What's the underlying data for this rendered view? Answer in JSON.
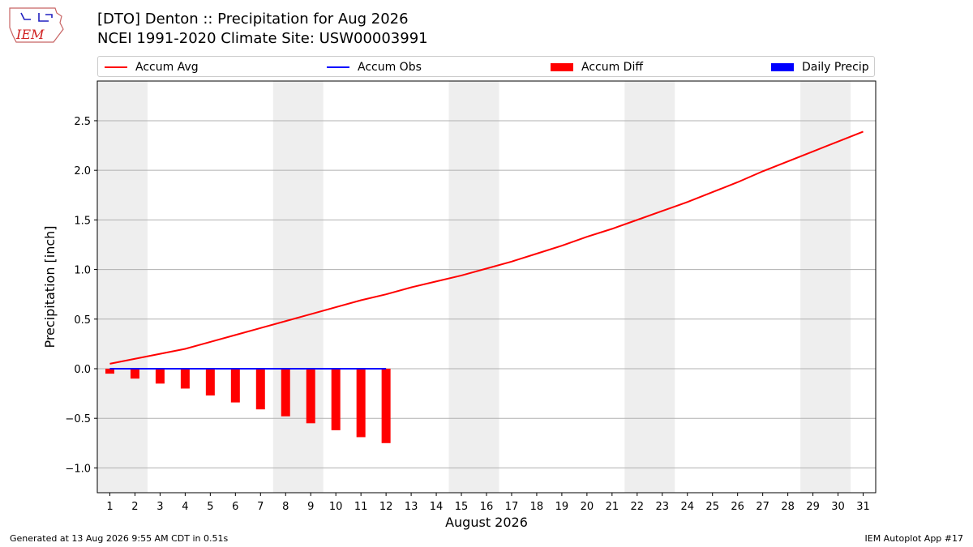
{
  "header": {
    "logo_text": "IEM",
    "title": "[DTO] Denton :: Precipitation for Aug 2026",
    "subtitle": "NCEI 1991-2020 Climate Site: USW00003991"
  },
  "legend": [
    {
      "label": "Accum Avg",
      "kind": "line",
      "color": "#ff0000"
    },
    {
      "label": "Accum Obs",
      "kind": "line",
      "color": "#0000ff"
    },
    {
      "label": "Accum Diff",
      "kind": "box",
      "color": "#ff0000"
    },
    {
      "label": "Daily Precip",
      "kind": "box",
      "color": "#0000ff"
    }
  ],
  "footer": {
    "left": "Generated at 13 Aug 2026 9:55 AM CDT in 0.51s",
    "right": "IEM Autoplot App #17"
  },
  "chart_data": {
    "type": "bar",
    "xlabel": "August 2026",
    "ylabel": "Precipitation [inch]",
    "xlim": [
      0.5,
      31.5
    ],
    "ylim": [
      -1.25,
      2.9
    ],
    "yticks": [
      -1.0,
      -0.5,
      0.0,
      0.5,
      1.0,
      1.5,
      2.0,
      2.5
    ],
    "ytick_labels": [
      "−1.0",
      "−0.5",
      "0.0",
      "0.5",
      "1.0",
      "1.5",
      "2.0",
      "2.5"
    ],
    "x": [
      1,
      2,
      3,
      4,
      5,
      6,
      7,
      8,
      9,
      10,
      11,
      12,
      13,
      14,
      15,
      16,
      17,
      18,
      19,
      20,
      21,
      22,
      23,
      24,
      25,
      26,
      27,
      28,
      29,
      30,
      31
    ],
    "xtick_labels": [
      "1",
      "2",
      "3",
      "4",
      "5",
      "6",
      "7",
      "8",
      "9",
      "10",
      "11",
      "12",
      "13",
      "14",
      "15",
      "16",
      "17",
      "18",
      "19",
      "20",
      "21",
      "22",
      "23",
      "24",
      "25",
      "26",
      "27",
      "28",
      "29",
      "30",
      "31"
    ],
    "weekend_shading": [
      [
        0.5,
        2.5
      ],
      [
        7.5,
        9.5
      ],
      [
        14.5,
        16.5
      ],
      [
        21.5,
        23.5
      ],
      [
        28.5,
        30.5
      ]
    ],
    "grid": true,
    "series": [
      {
        "name": "Accum Avg",
        "type": "line",
        "color": "#ff0000",
        "x": [
          1,
          2,
          3,
          4,
          5,
          6,
          7,
          8,
          9,
          10,
          11,
          12,
          13,
          14,
          15,
          16,
          17,
          18,
          19,
          20,
          21,
          22,
          23,
          24,
          25,
          26,
          27,
          28,
          29,
          30,
          31
        ],
        "values": [
          0.05,
          0.1,
          0.15,
          0.2,
          0.27,
          0.34,
          0.41,
          0.48,
          0.55,
          0.62,
          0.69,
          0.75,
          0.82,
          0.88,
          0.94,
          1.01,
          1.08,
          1.16,
          1.24,
          1.33,
          1.41,
          1.5,
          1.59,
          1.68,
          1.78,
          1.88,
          1.99,
          2.09,
          2.19,
          2.29,
          2.39
        ]
      },
      {
        "name": "Accum Obs",
        "type": "line",
        "color": "#0000ff",
        "x": [
          1,
          2,
          3,
          4,
          5,
          6,
          7,
          8,
          9,
          10,
          11,
          12
        ],
        "values": [
          0,
          0,
          0,
          0,
          0,
          0,
          0,
          0,
          0,
          0,
          0,
          0
        ]
      },
      {
        "name": "Accum Diff",
        "type": "bar",
        "color": "#ff0000",
        "x": [
          1,
          2,
          3,
          4,
          5,
          6,
          7,
          8,
          9,
          10,
          11,
          12
        ],
        "values": [
          -0.05,
          -0.1,
          -0.15,
          -0.2,
          -0.27,
          -0.34,
          -0.41,
          -0.48,
          -0.55,
          -0.62,
          -0.69,
          -0.75
        ]
      },
      {
        "name": "Daily Precip",
        "type": "bar",
        "color": "#0000ff",
        "x": [],
        "values": []
      }
    ]
  }
}
